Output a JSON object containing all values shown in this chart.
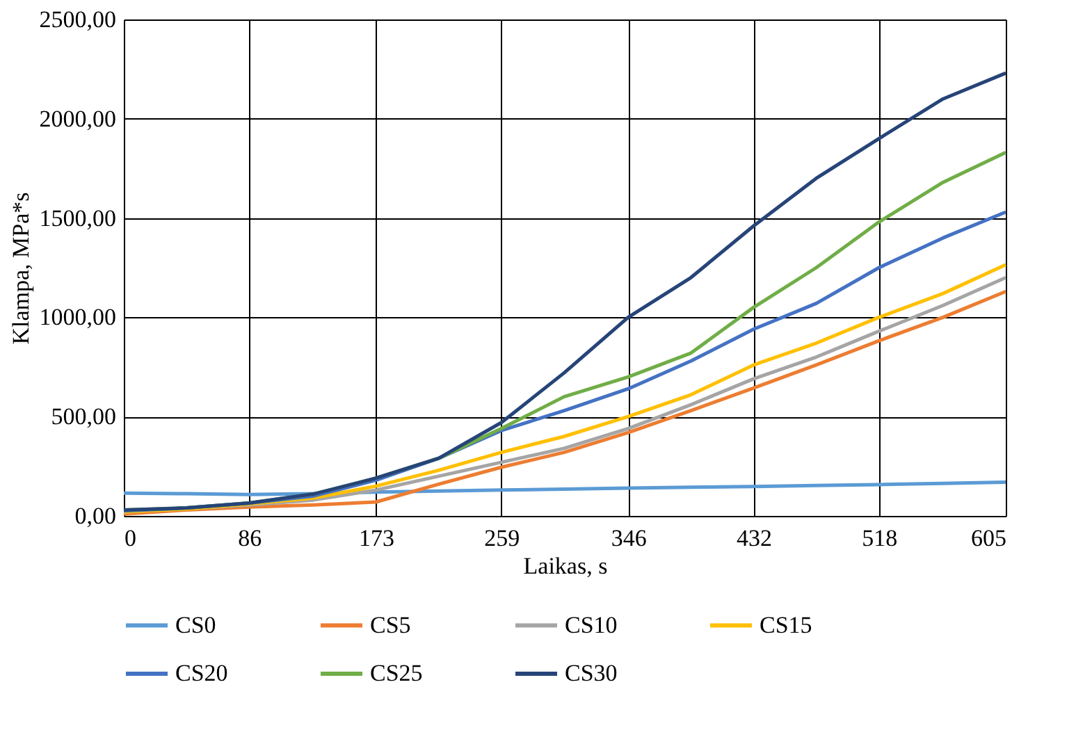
{
  "chart_data": {
    "type": "line",
    "xlabel": "Laikas, s",
    "ylabel": "Klampa, MPa*s",
    "x": [
      0,
      43,
      86,
      130,
      173,
      216,
      259,
      302,
      346,
      389,
      432,
      475,
      518,
      562,
      605
    ],
    "xlim": [
      0,
      605
    ],
    "xticks": [
      0,
      86,
      173,
      259,
      346,
      432,
      518,
      605
    ],
    "ylim": [
      0,
      2500
    ],
    "yticks": [
      {
        "value": 0,
        "label": "0,00"
      },
      {
        "value": 500,
        "label": "500,00"
      },
      {
        "value": 1000,
        "label": "1000,00"
      },
      {
        "value": 1500,
        "label": "1500,00"
      },
      {
        "value": 2000,
        "label": "2000,00"
      },
      {
        "value": 2500,
        "label": "2500,00"
      }
    ],
    "grid": true,
    "legend": "bottom",
    "marker": "none",
    "line_style": "solid",
    "series": [
      {
        "name": "CS0",
        "color": "#5b9bd5",
        "values": [
          115,
          112,
          108,
          112,
          120,
          125,
          130,
          135,
          140,
          144,
          148,
          153,
          158,
          164,
          170
        ]
      },
      {
        "name": "CS5",
        "color": "#ed7d31",
        "values": [
          10,
          30,
          45,
          55,
          70,
          160,
          245,
          320,
          420,
          530,
          644,
          760,
          882,
          1000,
          1130
        ]
      },
      {
        "name": "CS10",
        "color": "#a5a5a5",
        "values": [
          20,
          35,
          55,
          80,
          130,
          200,
          270,
          340,
          440,
          560,
          690,
          800,
          930,
          1060,
          1200
        ]
      },
      {
        "name": "CS15",
        "color": "#ffc000",
        "values": [
          20,
          35,
          60,
          90,
          150,
          230,
          320,
          400,
          500,
          610,
          760,
          870,
          1000,
          1120,
          1265
        ]
      },
      {
        "name": "CS20",
        "color": "#4472c4",
        "values": [
          25,
          40,
          65,
          100,
          180,
          290,
          430,
          530,
          640,
          780,
          940,
          1070,
          1250,
          1400,
          1530
        ]
      },
      {
        "name": "CS25",
        "color": "#70ad47",
        "values": [
          30,
          40,
          65,
          110,
          190,
          290,
          440,
          600,
          700,
          820,
          1050,
          1250,
          1480,
          1680,
          1830
        ]
      },
      {
        "name": "CS30",
        "color": "#264478",
        "values": [
          30,
          40,
          65,
          110,
          190,
          290,
          470,
          720,
          1000,
          1200,
          1460,
          1700,
          1900,
          2100,
          2230
        ]
      }
    ]
  }
}
